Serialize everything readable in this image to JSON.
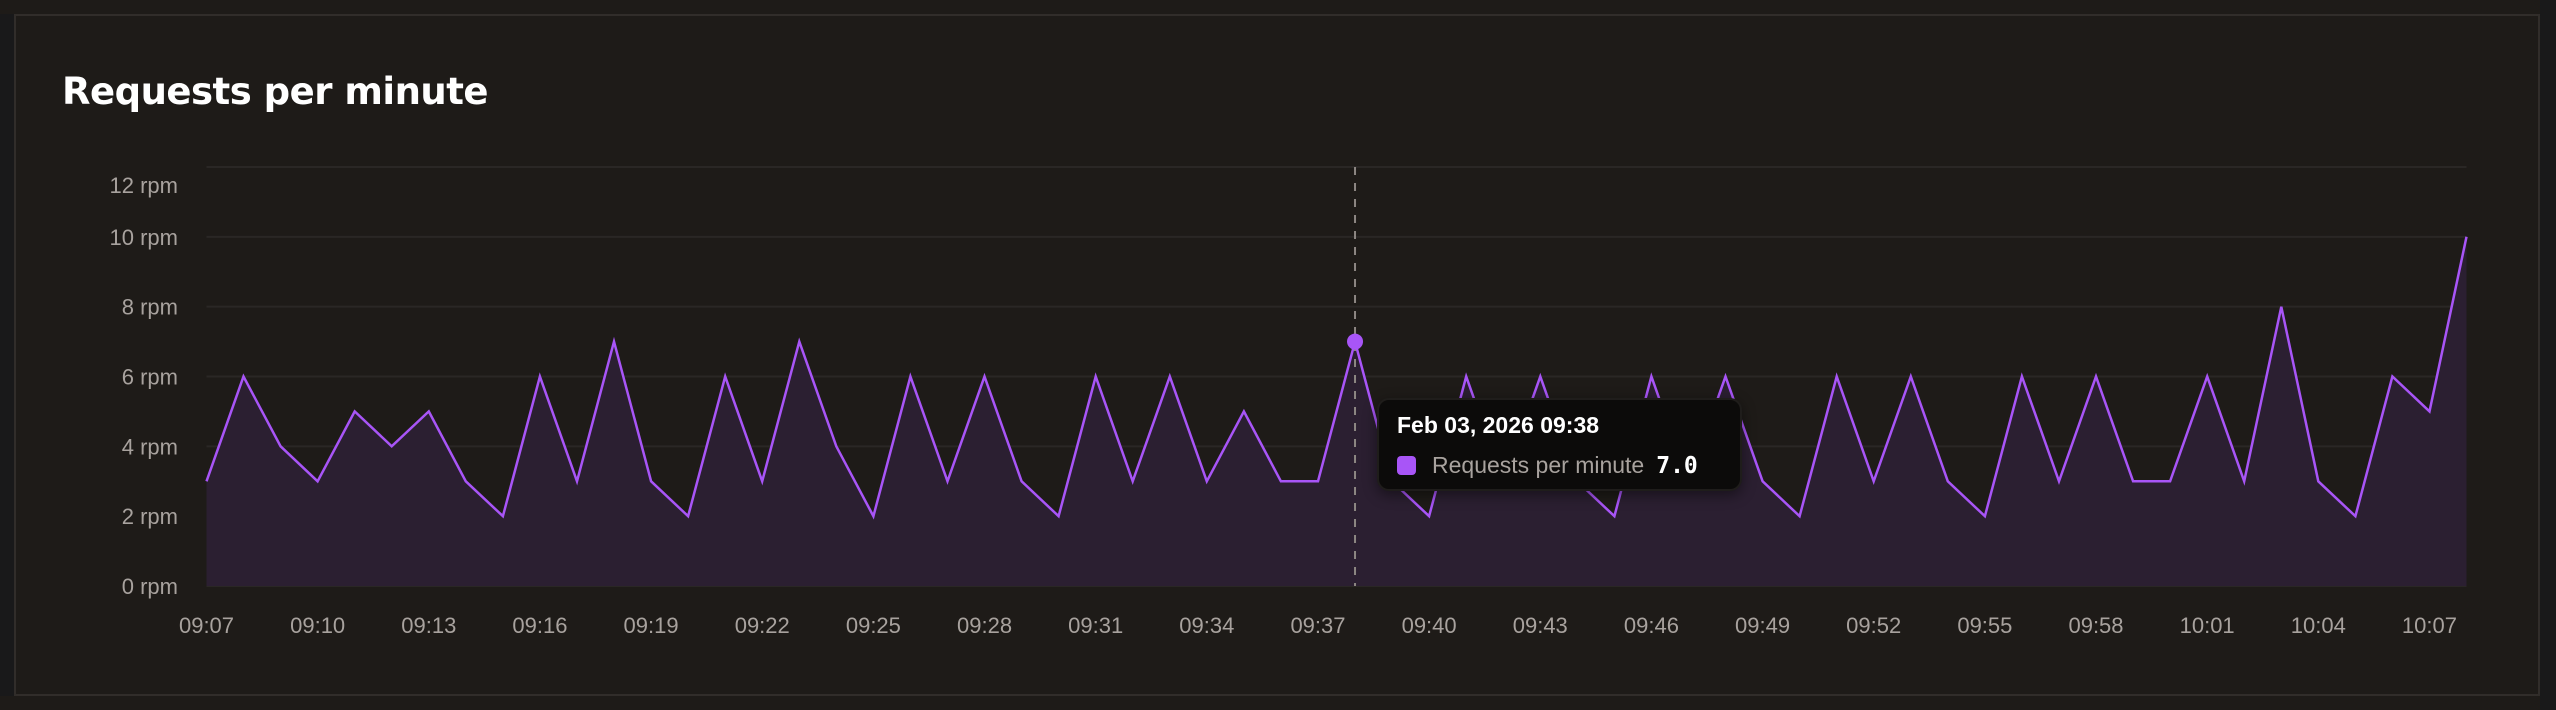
{
  "card": {
    "title": "Requests per minute"
  },
  "colors": {
    "line": "#a855f7",
    "area": "#2b1f31",
    "grid": "#2a2725",
    "axis_text": "#a8a29e",
    "card_bg": "#1e1b18",
    "tooltip_bg": "#0c0b0a"
  },
  "tooltip": {
    "title": "Feb 03, 2026 09:38",
    "series_label": "Requests per minute",
    "value": "7.0",
    "swatch_color": "#a855f7",
    "index": 31
  },
  "chart_data": {
    "type": "area",
    "title": "Requests per minute",
    "xlabel": "",
    "ylabel": "",
    "ylim": [
      0,
      12
    ],
    "y_ticks": [
      0,
      2,
      4,
      6,
      8,
      10,
      12
    ],
    "y_tick_labels": [
      "0 rpm",
      "2 rpm",
      "4 rpm",
      "6 rpm",
      "8 rpm",
      "10 rpm",
      "12 rpm"
    ],
    "x_tick_labels": [
      "09:07",
      "09:10",
      "09:13",
      "09:16",
      "09:19",
      "09:22",
      "09:25",
      "09:28",
      "09:31",
      "09:34",
      "09:37",
      "09:40",
      "09:43",
      "09:46",
      "09:49",
      "09:52",
      "09:55",
      "09:58",
      "10:01",
      "10:04",
      "10:07"
    ],
    "x_tick_step": 3,
    "grid": true,
    "legend": false,
    "x_start": "09:07",
    "x_end": "10:08",
    "series": [
      {
        "name": "Requests per minute",
        "color": "#a855f7",
        "values": [
          3,
          6,
          4,
          3,
          5,
          4,
          5,
          3,
          2,
          6,
          3,
          7,
          3,
          2,
          6,
          3,
          7,
          4,
          2,
          6,
          3,
          6,
          3,
          2,
          6,
          3,
          6,
          3,
          5,
          3,
          3,
          7,
          3,
          2,
          6,
          3,
          6,
          3,
          2,
          6,
          3,
          6,
          3,
          2,
          6,
          3,
          6,
          3,
          2,
          6,
          3,
          6,
          3,
          3,
          6,
          3,
          8,
          3,
          2,
          6,
          5,
          10
        ]
      }
    ]
  }
}
